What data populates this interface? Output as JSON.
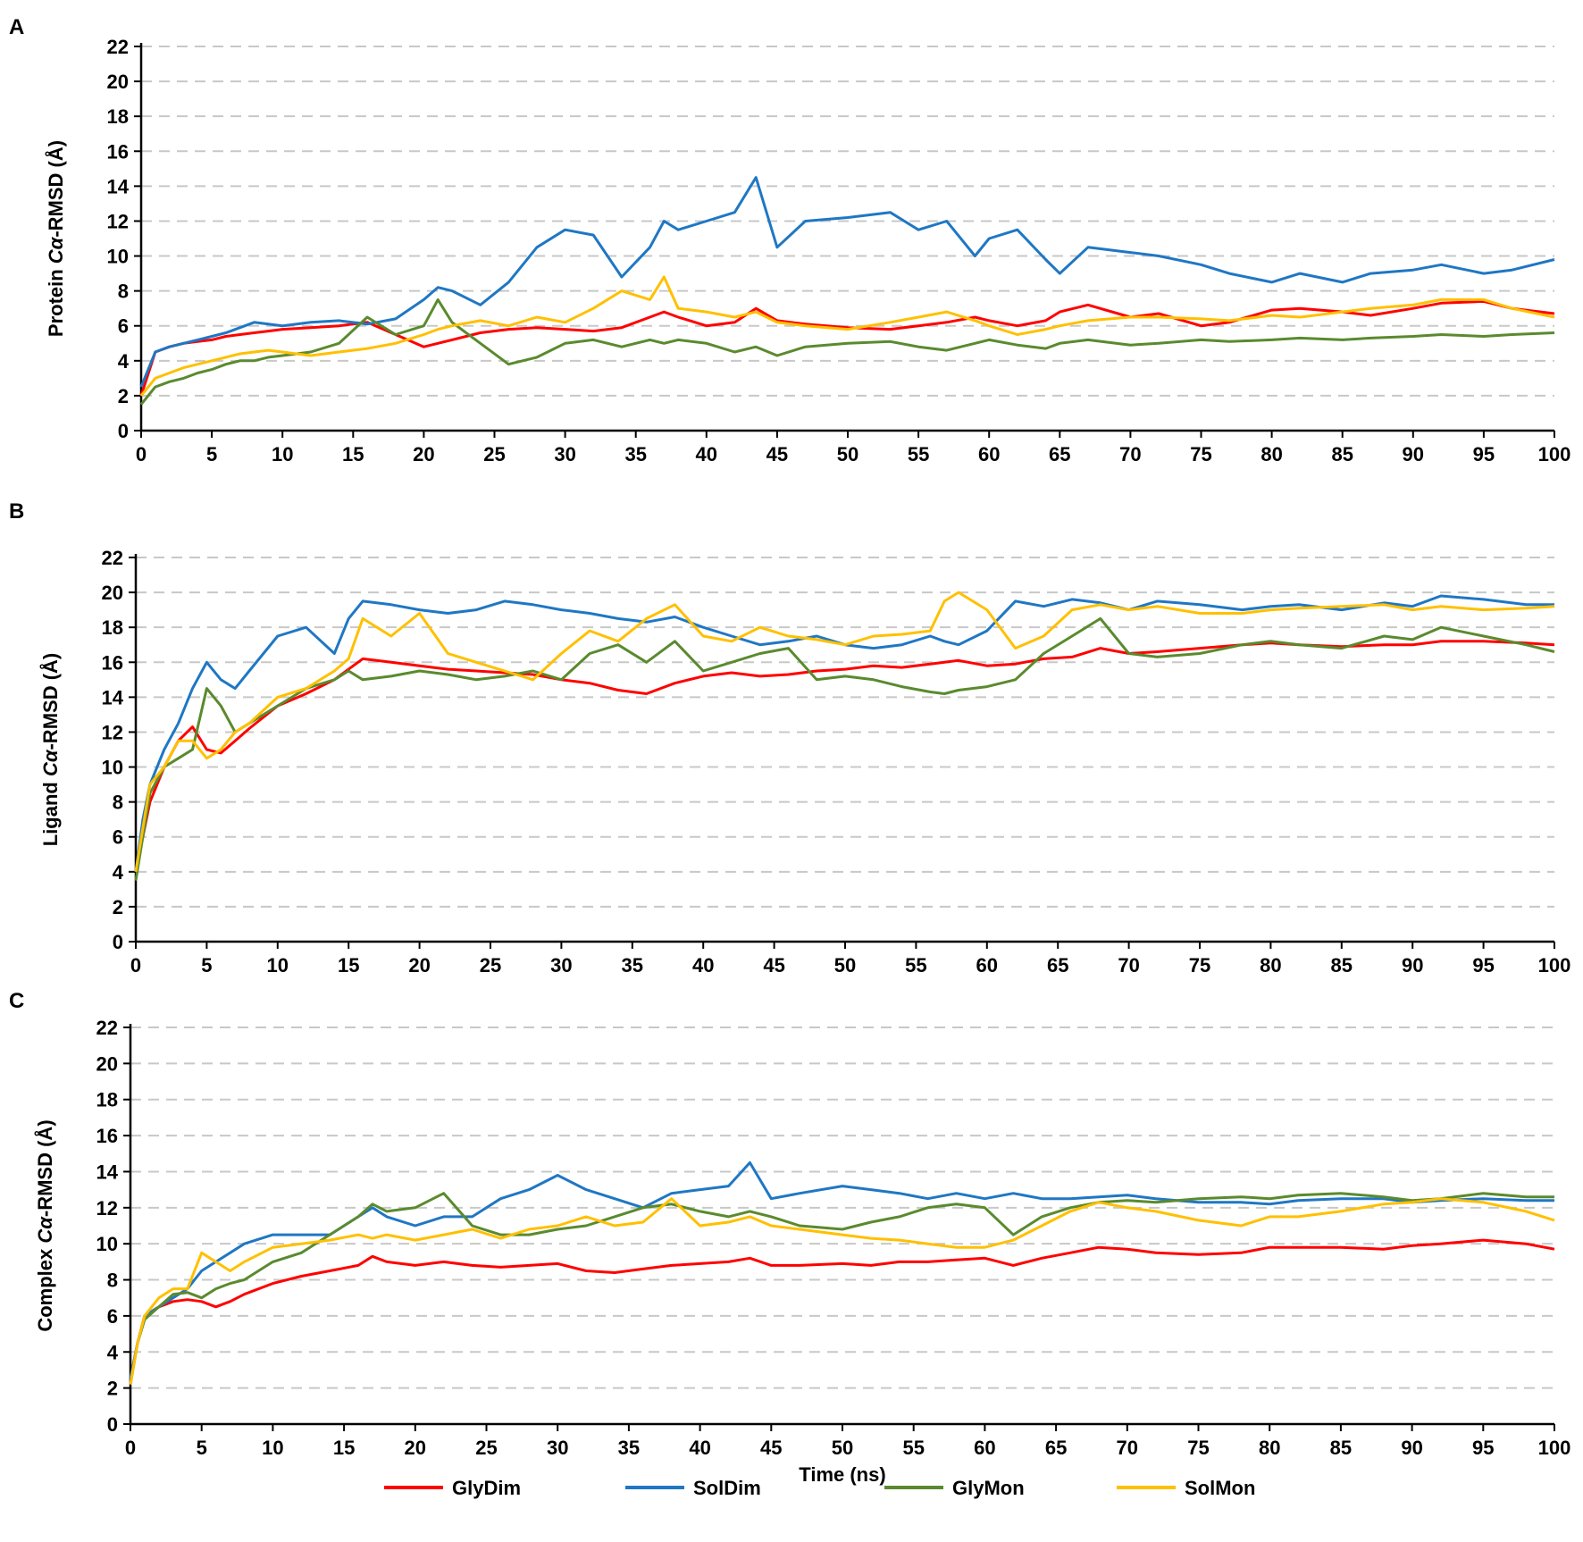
{
  "chart_data": [
    {
      "panel": "A",
      "type": "line",
      "ylabel_prefix": "Protein ",
      "ylabel_italic": "Cα",
      "ylabel_suffix": "-RMSD (Å)",
      "xlabel": "",
      "xlim": [
        0,
        100
      ],
      "ylim": [
        0,
        22
      ],
      "grid": true,
      "x_ticks": [
        "0",
        "5",
        "10",
        "15",
        "20",
        "25",
        "30",
        "35",
        "40",
        "45",
        "50",
        "55",
        "60",
        "65",
        "70",
        "75",
        "80",
        "85",
        "90",
        "95",
        "100"
      ],
      "y_ticks": [
        "0",
        "2",
        "4",
        "6",
        "8",
        "10",
        "12",
        "14",
        "16",
        "18",
        "20",
        "22"
      ],
      "x": [
        0,
        1,
        2,
        3,
        4,
        5,
        6,
        7,
        8,
        9,
        10,
        12,
        14,
        16,
        18,
        20,
        21,
        22,
        24,
        26,
        28,
        30,
        32,
        34,
        36,
        37,
        38,
        40,
        42,
        43.5,
        45,
        47,
        50,
        53,
        55,
        57,
        59,
        60,
        62,
        64,
        65,
        67,
        70,
        72,
        75,
        77,
        80,
        82,
        85,
        87,
        90,
        92,
        95,
        97,
        100
      ],
      "series": [
        {
          "name": "GlyDim",
          "color": "#ff0000",
          "values": [
            2,
            4.5,
            4.8,
            5,
            5.1,
            5.2,
            5.4,
            5.5,
            5.6,
            5.7,
            5.8,
            5.9,
            6.0,
            6.2,
            5.5,
            4.8,
            5.0,
            5.2,
            5.6,
            5.8,
            5.9,
            5.8,
            5.7,
            5.9,
            6.5,
            6.8,
            6.5,
            6.0,
            6.2,
            7.0,
            6.3,
            6.1,
            5.9,
            5.8,
            6.0,
            6.2,
            6.5,
            6.3,
            6.0,
            6.3,
            6.8,
            7.2,
            6.5,
            6.7,
            6.0,
            6.2,
            6.9,
            7.0,
            6.8,
            6.6,
            7.0,
            7.3,
            7.4,
            7.0,
            6.7
          ]
        },
        {
          "name": "SolDim",
          "color": "#1f77c4",
          "values": [
            2.5,
            4.5,
            4.8,
            5.0,
            5.2,
            5.4,
            5.6,
            5.9,
            6.2,
            6.1,
            6.0,
            6.2,
            6.3,
            6.1,
            6.4,
            7.5,
            8.2,
            8.0,
            7.2,
            8.5,
            10.5,
            11.5,
            11.2,
            8.8,
            10.5,
            12.0,
            11.5,
            12.0,
            12.5,
            14.5,
            10.5,
            12.0,
            12.2,
            12.5,
            11.5,
            12.0,
            10.0,
            11.0,
            11.5,
            9.8,
            9.0,
            10.5,
            10.2,
            10.0,
            9.5,
            9.0,
            8.5,
            9.0,
            8.5,
            9.0,
            9.2,
            9.5,
            9.0,
            9.2,
            9.8
          ]
        },
        {
          "name": "GlyMon",
          "color": "#5a8a2e",
          "values": [
            1.5,
            2.5,
            2.8,
            3.0,
            3.3,
            3.5,
            3.8,
            4.0,
            4.0,
            4.2,
            4.3,
            4.5,
            5.0,
            6.5,
            5.5,
            6.0,
            7.5,
            6.2,
            5.0,
            3.8,
            4.2,
            5.0,
            5.2,
            4.8,
            5.2,
            5.0,
            5.2,
            5.0,
            4.5,
            4.8,
            4.3,
            4.8,
            5.0,
            5.1,
            4.8,
            4.6,
            5.0,
            5.2,
            4.9,
            4.7,
            5.0,
            5.2,
            4.9,
            5.0,
            5.2,
            5.1,
            5.2,
            5.3,
            5.2,
            5.3,
            5.4,
            5.5,
            5.4,
            5.5,
            5.6
          ]
        },
        {
          "name": "SolMon",
          "color": "#ffc000",
          "values": [
            2,
            3.0,
            3.3,
            3.6,
            3.8,
            4.0,
            4.2,
            4.4,
            4.5,
            4.6,
            4.5,
            4.3,
            4.5,
            4.7,
            5.0,
            5.5,
            5.8,
            6.0,
            6.3,
            6.0,
            6.5,
            6.2,
            7.0,
            8.0,
            7.5,
            8.8,
            7.0,
            6.8,
            6.5,
            6.8,
            6.2,
            6.0,
            5.8,
            6.2,
            6.5,
            6.8,
            6.3,
            6.0,
            5.5,
            5.8,
            6.0,
            6.3,
            6.5,
            6.5,
            6.4,
            6.3,
            6.6,
            6.5,
            6.8,
            7.0,
            7.2,
            7.5,
            7.5,
            7.0,
            6.5
          ]
        }
      ]
    },
    {
      "panel": "B",
      "type": "line",
      "ylabel_prefix": "Ligand ",
      "ylabel_italic": "Cα",
      "ylabel_suffix": "-RMSD (Å)",
      "xlabel": "",
      "xlim": [
        0,
        100
      ],
      "ylim": [
        0,
        22
      ],
      "grid": true,
      "x_ticks": [
        "0",
        "5",
        "10",
        "15",
        "20",
        "25",
        "30",
        "35",
        "40",
        "45",
        "50",
        "55",
        "60",
        "65",
        "70",
        "75",
        "80",
        "85",
        "90",
        "95",
        "100"
      ],
      "y_ticks": [
        "0",
        "2",
        "4",
        "6",
        "8",
        "10",
        "12",
        "14",
        "16",
        "18",
        "20",
        "22"
      ],
      "x": [
        0,
        0.5,
        1,
        2,
        3,
        4,
        5,
        6,
        7,
        8,
        10,
        12,
        14,
        15,
        16,
        18,
        20,
        22,
        24,
        26,
        28,
        30,
        32,
        34,
        36,
        38,
        40,
        42,
        44,
        46,
        48,
        50,
        52,
        54,
        56,
        57,
        58,
        60,
        62,
        64,
        66,
        68,
        70,
        72,
        75,
        78,
        80,
        82,
        85,
        88,
        90,
        92,
        95,
        98,
        100
      ],
      "series": [
        {
          "name": "GlyDim",
          "color": "#ff0000",
          "values": [
            4,
            6,
            8,
            10,
            11.5,
            12.3,
            11.0,
            10.8,
            11.5,
            12.2,
            13.5,
            14.2,
            15.0,
            15.6,
            16.2,
            16.0,
            15.8,
            15.6,
            15.5,
            15.4,
            15.3,
            15.0,
            14.8,
            14.4,
            14.2,
            14.8,
            15.2,
            15.4,
            15.2,
            15.3,
            15.5,
            15.6,
            15.8,
            15.7,
            15.9,
            16.0,
            16.1,
            15.8,
            15.9,
            16.2,
            16.3,
            16.8,
            16.5,
            16.6,
            16.8,
            17.0,
            17.1,
            17.0,
            16.9,
            17.0,
            17.0,
            17.2,
            17.2,
            17.1,
            17.0
          ]
        },
        {
          "name": "SolDim",
          "color": "#1f77c4",
          "values": [
            4,
            7,
            9,
            11,
            12.5,
            14.5,
            16.0,
            15.0,
            14.5,
            15.5,
            17.5,
            18.0,
            16.5,
            18.5,
            19.5,
            19.3,
            19.0,
            18.8,
            19.0,
            19.5,
            19.3,
            19.0,
            18.8,
            18.5,
            18.3,
            18.6,
            18.0,
            17.5,
            17.0,
            17.2,
            17.5,
            17.0,
            16.8,
            17.0,
            17.5,
            17.2,
            17.0,
            17.8,
            19.5,
            19.2,
            19.6,
            19.4,
            19.0,
            19.5,
            19.3,
            19.0,
            19.2,
            19.3,
            19.0,
            19.4,
            19.2,
            19.8,
            19.6,
            19.3,
            19.3
          ]
        },
        {
          "name": "GlyMon",
          "color": "#5a8a2e",
          "values": [
            3.5,
            6,
            8.5,
            10,
            10.5,
            11.0,
            14.5,
            13.5,
            12.0,
            12.5,
            13.5,
            14.5,
            15.0,
            15.5,
            15.0,
            15.2,
            15.5,
            15.3,
            15.0,
            15.2,
            15.5,
            15.0,
            16.5,
            17.0,
            16.0,
            17.2,
            15.5,
            16.0,
            16.5,
            16.8,
            15.0,
            15.2,
            15.0,
            14.6,
            14.3,
            14.2,
            14.4,
            14.6,
            15.0,
            16.5,
            17.5,
            18.5,
            16.5,
            16.3,
            16.5,
            17.0,
            17.2,
            17.0,
            16.8,
            17.5,
            17.3,
            18.0,
            17.5,
            17.0,
            16.6
          ]
        },
        {
          "name": "SolMon",
          "color": "#ffc000",
          "values": [
            4,
            6.5,
            9,
            10,
            11.5,
            11.5,
            10.5,
            11.0,
            12.0,
            12.5,
            14.0,
            14.5,
            15.5,
            16.2,
            18.5,
            17.5,
            18.8,
            16.5,
            16.0,
            15.5,
            15.0,
            16.5,
            17.8,
            17.2,
            18.5,
            19.3,
            17.5,
            17.2,
            18.0,
            17.5,
            17.3,
            17.0,
            17.5,
            17.6,
            17.8,
            19.5,
            20.0,
            19.0,
            16.8,
            17.5,
            19.0,
            19.3,
            19.0,
            19.2,
            18.8,
            18.8,
            19.0,
            19.1,
            19.2,
            19.3,
            19.0,
            19.2,
            19.0,
            19.1,
            19.2
          ]
        }
      ]
    },
    {
      "panel": "C",
      "type": "line",
      "ylabel_prefix": "Complex ",
      "ylabel_italic": "Cα",
      "ylabel_suffix": "-RMSD (Å)",
      "xlabel": "Time (ns)",
      "xlim": [
        0,
        100
      ],
      "ylim": [
        0,
        22
      ],
      "grid": true,
      "x_ticks": [
        "0",
        "5",
        "10",
        "15",
        "20",
        "25",
        "30",
        "35",
        "40",
        "45",
        "50",
        "55",
        "60",
        "65",
        "70",
        "75",
        "80",
        "85",
        "90",
        "95",
        "100"
      ],
      "y_ticks": [
        "0",
        "2",
        "4",
        "6",
        "8",
        "10",
        "12",
        "14",
        "16",
        "18",
        "20",
        "22"
      ],
      "x": [
        0,
        0.5,
        1,
        2,
        3,
        4,
        5,
        6,
        7,
        8,
        10,
        12,
        14,
        16,
        17,
        18,
        20,
        22,
        24,
        26,
        28,
        30,
        32,
        34,
        36,
        38,
        40,
        42,
        43.5,
        45,
        47,
        50,
        52,
        54,
        56,
        58,
        60,
        62,
        64,
        66,
        68,
        70,
        72,
        75,
        78,
        80,
        82,
        85,
        88,
        90,
        92,
        95,
        98,
        100
      ],
      "series": [
        {
          "name": "GlyDim",
          "color": "#ff0000",
          "values": [
            2.5,
            4.5,
            6.0,
            6.5,
            6.8,
            6.9,
            6.8,
            6.5,
            6.8,
            7.2,
            7.8,
            8.2,
            8.5,
            8.8,
            9.3,
            9.0,
            8.8,
            9.0,
            8.8,
            8.7,
            8.8,
            8.9,
            8.5,
            8.4,
            8.6,
            8.8,
            8.9,
            9.0,
            9.2,
            8.8,
            8.8,
            8.9,
            8.8,
            9.0,
            9.0,
            9.1,
            9.2,
            8.8,
            9.2,
            9.5,
            9.8,
            9.7,
            9.5,
            9.4,
            9.5,
            9.8,
            9.8,
            9.8,
            9.7,
            9.9,
            10.0,
            10.2,
            10.0,
            9.7
          ]
        },
        {
          "name": "SolDim",
          "color": "#1f77c4",
          "values": [
            2.5,
            4.5,
            6.0,
            6.5,
            7.0,
            7.5,
            8.5,
            9.0,
            9.5,
            10.0,
            10.5,
            10.5,
            10.5,
            11.5,
            12.0,
            11.5,
            11.0,
            11.5,
            11.5,
            12.5,
            13.0,
            13.8,
            13.0,
            12.5,
            12.0,
            12.8,
            13.0,
            13.2,
            14.5,
            12.5,
            12.8,
            13.2,
            13.0,
            12.8,
            12.5,
            12.8,
            12.5,
            12.8,
            12.5,
            12.5,
            12.6,
            12.7,
            12.5,
            12.3,
            12.3,
            12.2,
            12.4,
            12.5,
            12.5,
            12.3,
            12.4,
            12.5,
            12.4,
            12.4
          ]
        },
        {
          "name": "GlyMon",
          "color": "#5a8a2e",
          "values": [
            2.2,
            4.5,
            5.8,
            6.5,
            7.2,
            7.3,
            7.0,
            7.5,
            7.8,
            8.0,
            9.0,
            9.5,
            10.5,
            11.5,
            12.2,
            11.8,
            12.0,
            12.8,
            11.0,
            10.5,
            10.5,
            10.8,
            11.0,
            11.5,
            12.0,
            12.2,
            11.8,
            11.5,
            11.8,
            11.5,
            11.0,
            10.8,
            11.2,
            11.5,
            12.0,
            12.2,
            12.0,
            10.5,
            11.5,
            12.0,
            12.3,
            12.4,
            12.3,
            12.5,
            12.6,
            12.5,
            12.7,
            12.8,
            12.6,
            12.4,
            12.5,
            12.8,
            12.6,
            12.6
          ]
        },
        {
          "name": "SolMon",
          "color": "#ffc000",
          "values": [
            2.2,
            4.5,
            6.0,
            7.0,
            7.5,
            7.5,
            9.5,
            9.0,
            8.5,
            9.0,
            9.8,
            10.0,
            10.2,
            10.5,
            10.3,
            10.5,
            10.2,
            10.5,
            10.8,
            10.3,
            10.8,
            11.0,
            11.5,
            11.0,
            11.2,
            12.5,
            11.0,
            11.2,
            11.5,
            11.0,
            10.8,
            10.5,
            10.3,
            10.2,
            10.0,
            9.8,
            9.8,
            10.2,
            11.0,
            11.8,
            12.3,
            12.0,
            11.8,
            11.3,
            11.0,
            11.5,
            11.5,
            11.8,
            12.2,
            12.3,
            12.5,
            12.3,
            11.8,
            11.3
          ]
        }
      ]
    }
  ],
  "panel_labels": [
    "A",
    "B",
    "C"
  ],
  "legend": [
    {
      "name": "GlyDim",
      "color": "#ff0000"
    },
    {
      "name": "SolDim",
      "color": "#1f77c4"
    },
    {
      "name": "GlyMon",
      "color": "#5a8a2e"
    },
    {
      "name": "SolMon",
      "color": "#ffc000"
    }
  ]
}
